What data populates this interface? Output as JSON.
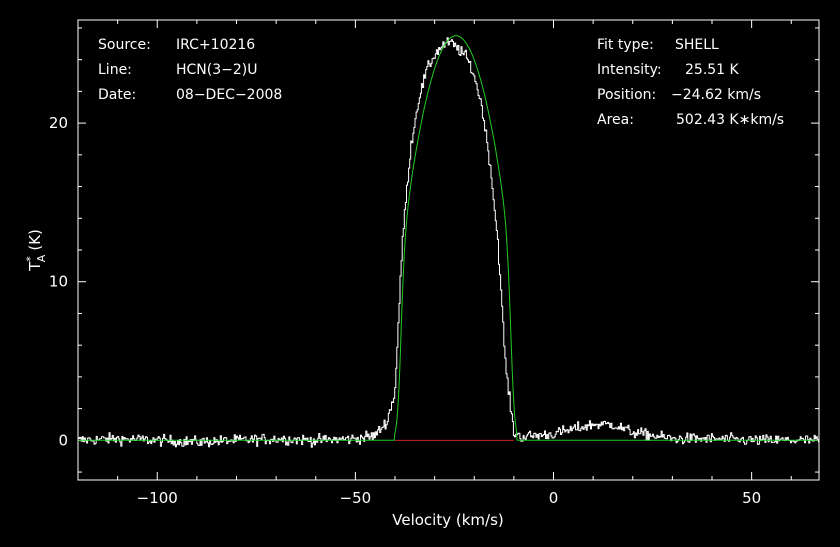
{
  "annotations": {
    "left": [
      {
        "key": "Source:",
        "value": "IRC+10216"
      },
      {
        "key": "Line:",
        "value": "HCN(3−2)U"
      },
      {
        "key": "Date:",
        "value": "08−DEC−2008"
      }
    ],
    "right": [
      {
        "key": "Fit type:",
        "value": "SHELL"
      },
      {
        "key": "Intensity:",
        "value": "25.51 K"
      },
      {
        "key": "Position:",
        "value": "−24.62 km/s"
      },
      {
        "key": "Area:",
        "value": "502.43 K∗km/s"
      }
    ]
  },
  "chart_data": {
    "type": "line",
    "xlabel": "Velocity (km/s)",
    "ylabel": "T_A^* (K)",
    "ylabel_main": "T",
    "ylabel_sub": "A",
    "ylabel_sup": "*",
    "ylabel_unit": "(K)",
    "xlim": [
      -120,
      67
    ],
    "ylim": [
      -2.5,
      26.5
    ],
    "xticks": [
      -100,
      -50,
      0,
      50
    ],
    "xtick_labels": [
      "−100",
      "−50",
      "0",
      "50"
    ],
    "yticks": [
      0,
      10,
      20
    ],
    "ytick_labels": [
      "0",
      "10",
      "20"
    ],
    "grid": false,
    "colors": {
      "background": "#000000",
      "axes": "#ffffff",
      "observed": "#ffffff",
      "fit": "#22cc22",
      "baseline": "#cc2222"
    },
    "series": [
      {
        "role": "observed spectrum (histogram)",
        "x": [
          -120,
          -110,
          -100,
          -90,
          -80,
          -70,
          -60,
          -50,
          -45,
          -42,
          -40,
          -38,
          -36,
          -34,
          -32,
          -30,
          -28,
          -26,
          -24.6,
          -22,
          -20,
          -18,
          -16,
          -14,
          -12,
          -10,
          -8,
          -5,
          0,
          5,
          10,
          15,
          20,
          25,
          30,
          40,
          50,
          60,
          67
        ],
        "y": [
          0.0,
          0.1,
          0.0,
          -0.1,
          0.0,
          0.1,
          0.0,
          0.1,
          0.3,
          1.2,
          3.0,
          13.0,
          18.5,
          21.5,
          23.3,
          24.3,
          24.9,
          25.1,
          24.8,
          24.2,
          23.0,
          21.0,
          17.5,
          12.5,
          4.5,
          0.5,
          0.2,
          0.3,
          0.4,
          0.7,
          1.0,
          1.0,
          0.5,
          0.3,
          0.1,
          0.1,
          0.0,
          0.0,
          0.0
        ]
      },
      {
        "role": "fit",
        "type": "SHELL",
        "peak": 25.51,
        "center": -24.62,
        "area": 502.43,
        "x_min": -38.6,
        "x_max": -10.6,
        "horn_ratio": 0.0
      },
      {
        "role": "baseline",
        "x": [
          -40,
          -10
        ],
        "y": [
          0,
          0
        ]
      }
    ]
  }
}
